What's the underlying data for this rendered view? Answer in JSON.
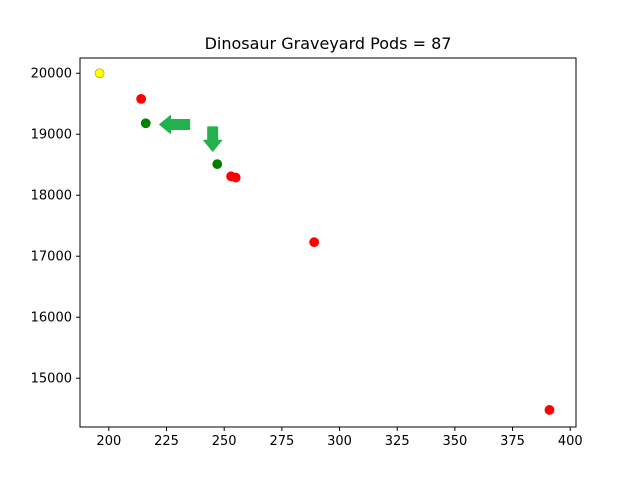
{
  "chart_data": {
    "type": "scatter",
    "title": "Dinosaur Graveyard Pods = 87",
    "xlabel": "",
    "ylabel": "",
    "xlim": [
      187.5,
      402.5
    ],
    "ylim": [
      14200,
      20250
    ],
    "x_ticks": [
      200,
      225,
      250,
      275,
      300,
      325,
      350,
      375,
      400
    ],
    "y_ticks": [
      15000,
      16000,
      17000,
      18000,
      19000,
      20000
    ],
    "grid": false,
    "points": [
      {
        "x": 196,
        "y": 20000,
        "color": "#ffff00",
        "edge": "#b8b800"
      },
      {
        "x": 214,
        "y": 19580,
        "color": "#ff0000"
      },
      {
        "x": 216,
        "y": 19180,
        "color": "#008000"
      },
      {
        "x": 247,
        "y": 18510,
        "color": "#008000"
      },
      {
        "x": 253,
        "y": 18310,
        "color": "#ff0000"
      },
      {
        "x": 255,
        "y": 18290,
        "color": "#ff0000"
      },
      {
        "x": 289,
        "y": 17230,
        "color": "#ff0000"
      },
      {
        "x": 391,
        "y": 14480,
        "color": "#ff0000"
      }
    ],
    "arrows": [
      {
        "from": [
          235,
          19160
        ],
        "to": [
          222,
          19160
        ],
        "color": "#22b14c"
      },
      {
        "from": [
          245,
          19120
        ],
        "to": [
          245,
          18720
        ],
        "color": "#22b14c"
      }
    ]
  }
}
